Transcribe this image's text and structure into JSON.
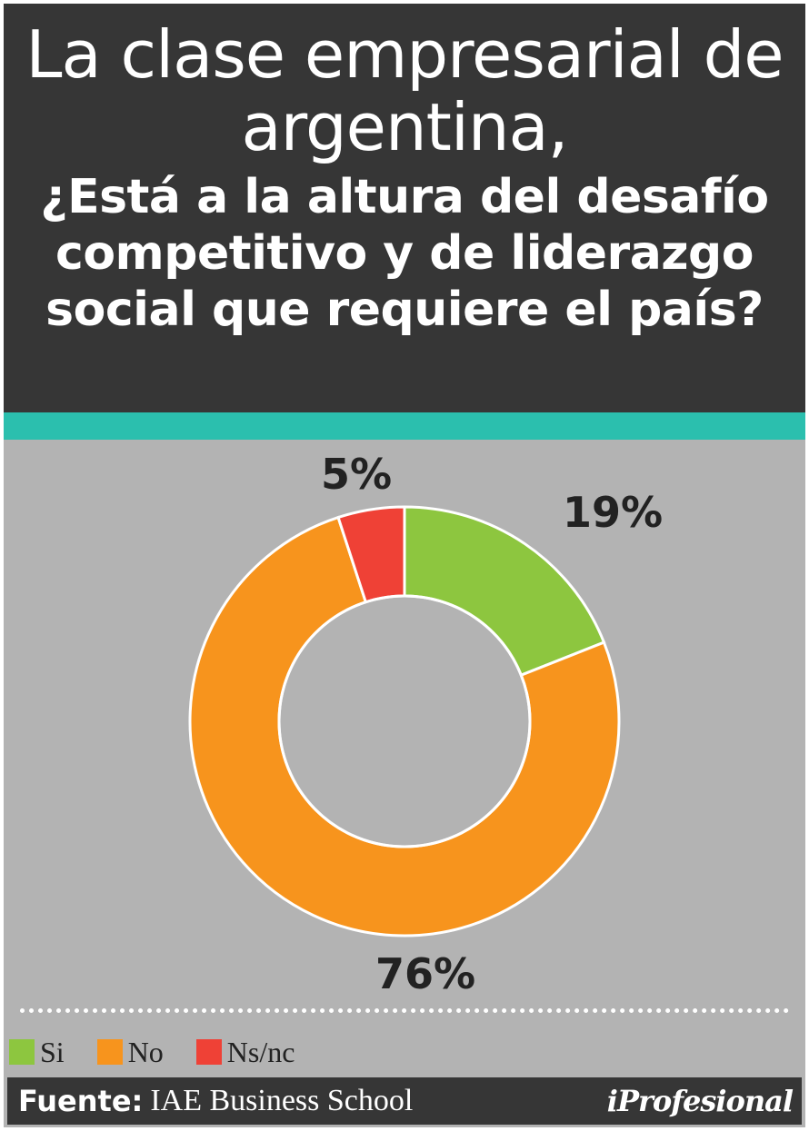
{
  "header": {
    "title": "La clase empresarial de argentina,",
    "subtitle": "¿Está a la altura del desafío competitivo y de liderazgo social que requiere el país?"
  },
  "chart_data": {
    "type": "pie",
    "donut": true,
    "categories": [
      "Si",
      "No",
      "Ns/nc"
    ],
    "values": [
      19,
      76,
      5
    ],
    "data_labels": [
      "19%",
      "76%",
      "5%"
    ],
    "colors": [
      "#8dc63f",
      "#f7941d",
      "#ef4136"
    ],
    "legend_position": "bottom-left"
  },
  "legend": [
    {
      "label": "Si",
      "color": "#8dc63f"
    },
    {
      "label": "No",
      "color": "#f7941d"
    },
    {
      "label": "Ns/nc",
      "color": "#ef4136"
    }
  ],
  "footer": {
    "source_label": "Fuente:",
    "source_value": "IAE Business School",
    "logo": "iProfesional"
  },
  "colors": {
    "header_bg": "#363636",
    "accent": "#2bbfae",
    "panel_bg": "#b3b3b3"
  }
}
